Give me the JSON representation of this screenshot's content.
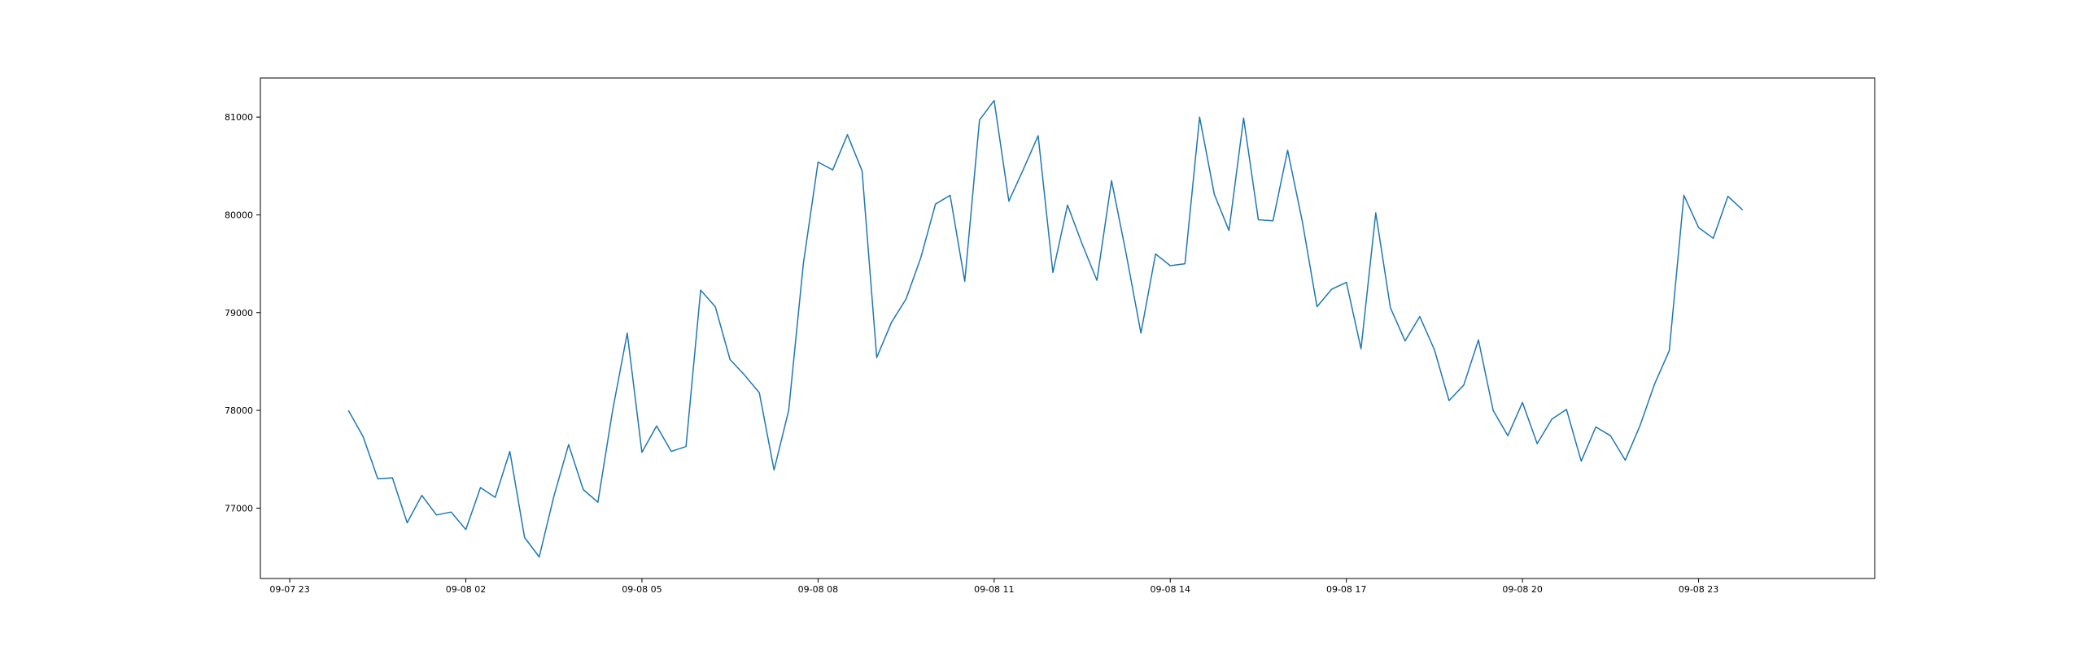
{
  "chart_data": {
    "type": "line",
    "title": "",
    "xlabel": "",
    "ylabel": "",
    "xlim": [
      "2025-09-07 22:30",
      "2025-09-09 02:00"
    ],
    "ylim": [
      76280,
      81400
    ],
    "xticks": [
      {
        "label": "09-07 23",
        "t": "2025-09-07 23:00"
      },
      {
        "label": "09-08 02",
        "t": "2025-09-08 02:00"
      },
      {
        "label": "09-08 05",
        "t": "2025-09-08 05:00"
      },
      {
        "label": "09-08 08",
        "t": "2025-09-08 08:00"
      },
      {
        "label": "09-08 11",
        "t": "2025-09-08 11:00"
      },
      {
        "label": "09-08 14",
        "t": "2025-09-08 14:00"
      },
      {
        "label": "09-08 17",
        "t": "2025-09-08 17:00"
      },
      {
        "label": "09-08 20",
        "t": "2025-09-08 20:00"
      },
      {
        "label": "09-08 23",
        "t": "2025-09-08 23:00"
      }
    ],
    "yticks": [
      {
        "label": "77000",
        "v": 77000
      },
      {
        "label": "78000",
        "v": 78000
      },
      {
        "label": "79000",
        "v": 79000
      },
      {
        "label": "80000",
        "v": 80000
      },
      {
        "label": "81000",
        "v": 81000
      }
    ],
    "grid": false,
    "color": "#1f77b4",
    "series": [
      {
        "x": [
          "2025-09-08 00:00",
          "2025-09-08 00:15",
          "2025-09-08 00:30",
          "2025-09-08 00:45",
          "2025-09-08 01:00",
          "2025-09-08 01:15",
          "2025-09-08 01:30",
          "2025-09-08 01:45",
          "2025-09-08 02:00",
          "2025-09-08 02:15",
          "2025-09-08 02:30",
          "2025-09-08 02:45",
          "2025-09-08 03:00",
          "2025-09-08 03:15",
          "2025-09-08 03:30",
          "2025-09-08 03:45",
          "2025-09-08 04:00",
          "2025-09-08 04:15",
          "2025-09-08 04:30",
          "2025-09-08 04:45",
          "2025-09-08 05:00",
          "2025-09-08 05:15",
          "2025-09-08 05:30",
          "2025-09-08 05:45",
          "2025-09-08 06:00",
          "2025-09-08 06:15",
          "2025-09-08 06:30",
          "2025-09-08 06:45",
          "2025-09-08 07:00",
          "2025-09-08 07:15",
          "2025-09-08 07:30",
          "2025-09-08 07:45",
          "2025-09-08 08:00",
          "2025-09-08 08:15",
          "2025-09-08 08:30",
          "2025-09-08 08:45",
          "2025-09-08 09:00",
          "2025-09-08 09:15",
          "2025-09-08 09:30",
          "2025-09-08 09:45",
          "2025-09-08 10:00",
          "2025-09-08 10:15",
          "2025-09-08 10:30",
          "2025-09-08 10:45",
          "2025-09-08 11:00",
          "2025-09-08 11:15",
          "2025-09-08 11:30",
          "2025-09-08 11:45",
          "2025-09-08 12:00",
          "2025-09-08 12:15",
          "2025-09-08 12:30",
          "2025-09-08 12:45",
          "2025-09-08 13:00",
          "2025-09-08 13:15",
          "2025-09-08 13:30",
          "2025-09-08 13:45",
          "2025-09-08 14:00",
          "2025-09-08 14:15",
          "2025-09-08 14:30",
          "2025-09-08 14:45",
          "2025-09-08 15:00",
          "2025-09-08 15:15",
          "2025-09-08 15:30",
          "2025-09-08 15:45",
          "2025-09-08 16:00",
          "2025-09-08 16:15",
          "2025-09-08 16:30",
          "2025-09-08 16:45",
          "2025-09-08 17:00",
          "2025-09-08 17:15",
          "2025-09-08 17:30",
          "2025-09-08 17:45",
          "2025-09-08 18:00",
          "2025-09-08 18:15",
          "2025-09-08 18:30",
          "2025-09-08 18:45",
          "2025-09-08 19:00",
          "2025-09-08 19:15",
          "2025-09-08 19:30",
          "2025-09-08 19:45",
          "2025-09-08 20:00",
          "2025-09-08 20:15",
          "2025-09-08 20:30",
          "2025-09-08 20:45",
          "2025-09-08 21:00",
          "2025-09-08 21:15",
          "2025-09-08 21:30",
          "2025-09-08 21:45",
          "2025-09-08 22:00",
          "2025-09-08 22:15",
          "2025-09-08 22:30",
          "2025-09-08 22:45",
          "2025-09-08 23:00",
          "2025-09-08 23:15",
          "2025-09-08 23:30",
          "2025-09-08 23:45"
        ],
        "y": [
          78000,
          77730,
          77300,
          77310,
          76850,
          77130,
          76930,
          76960,
          76780,
          77210,
          77110,
          77580,
          76700,
          76500,
          77120,
          77650,
          77190,
          77060,
          78000,
          78790,
          77570,
          77840,
          77580,
          77630,
          79230,
          79060,
          78520,
          78360,
          78180,
          77390,
          78000,
          79500,
          80540,
          80460,
          80820,
          80450,
          78540,
          78900,
          79140,
          79560,
          80110,
          80200,
          79320,
          80970,
          81170,
          80140,
          80470,
          80810,
          79410,
          80100,
          79700,
          79330,
          80350,
          79600,
          78790,
          79600,
          79480,
          79500,
          81000,
          80210,
          79840,
          80990,
          79950,
          79940,
          80660,
          79930,
          79060,
          79240,
          79310,
          78630,
          80020,
          79050,
          78710,
          78960,
          78620,
          78100,
          78260,
          78720,
          78000,
          77740,
          78080,
          77660,
          77910,
          78010,
          77480,
          77830,
          77740,
          77490,
          77840,
          78270,
          78610,
          80200,
          79870,
          79760,
          80190,
          80050
        ]
      }
    ]
  }
}
